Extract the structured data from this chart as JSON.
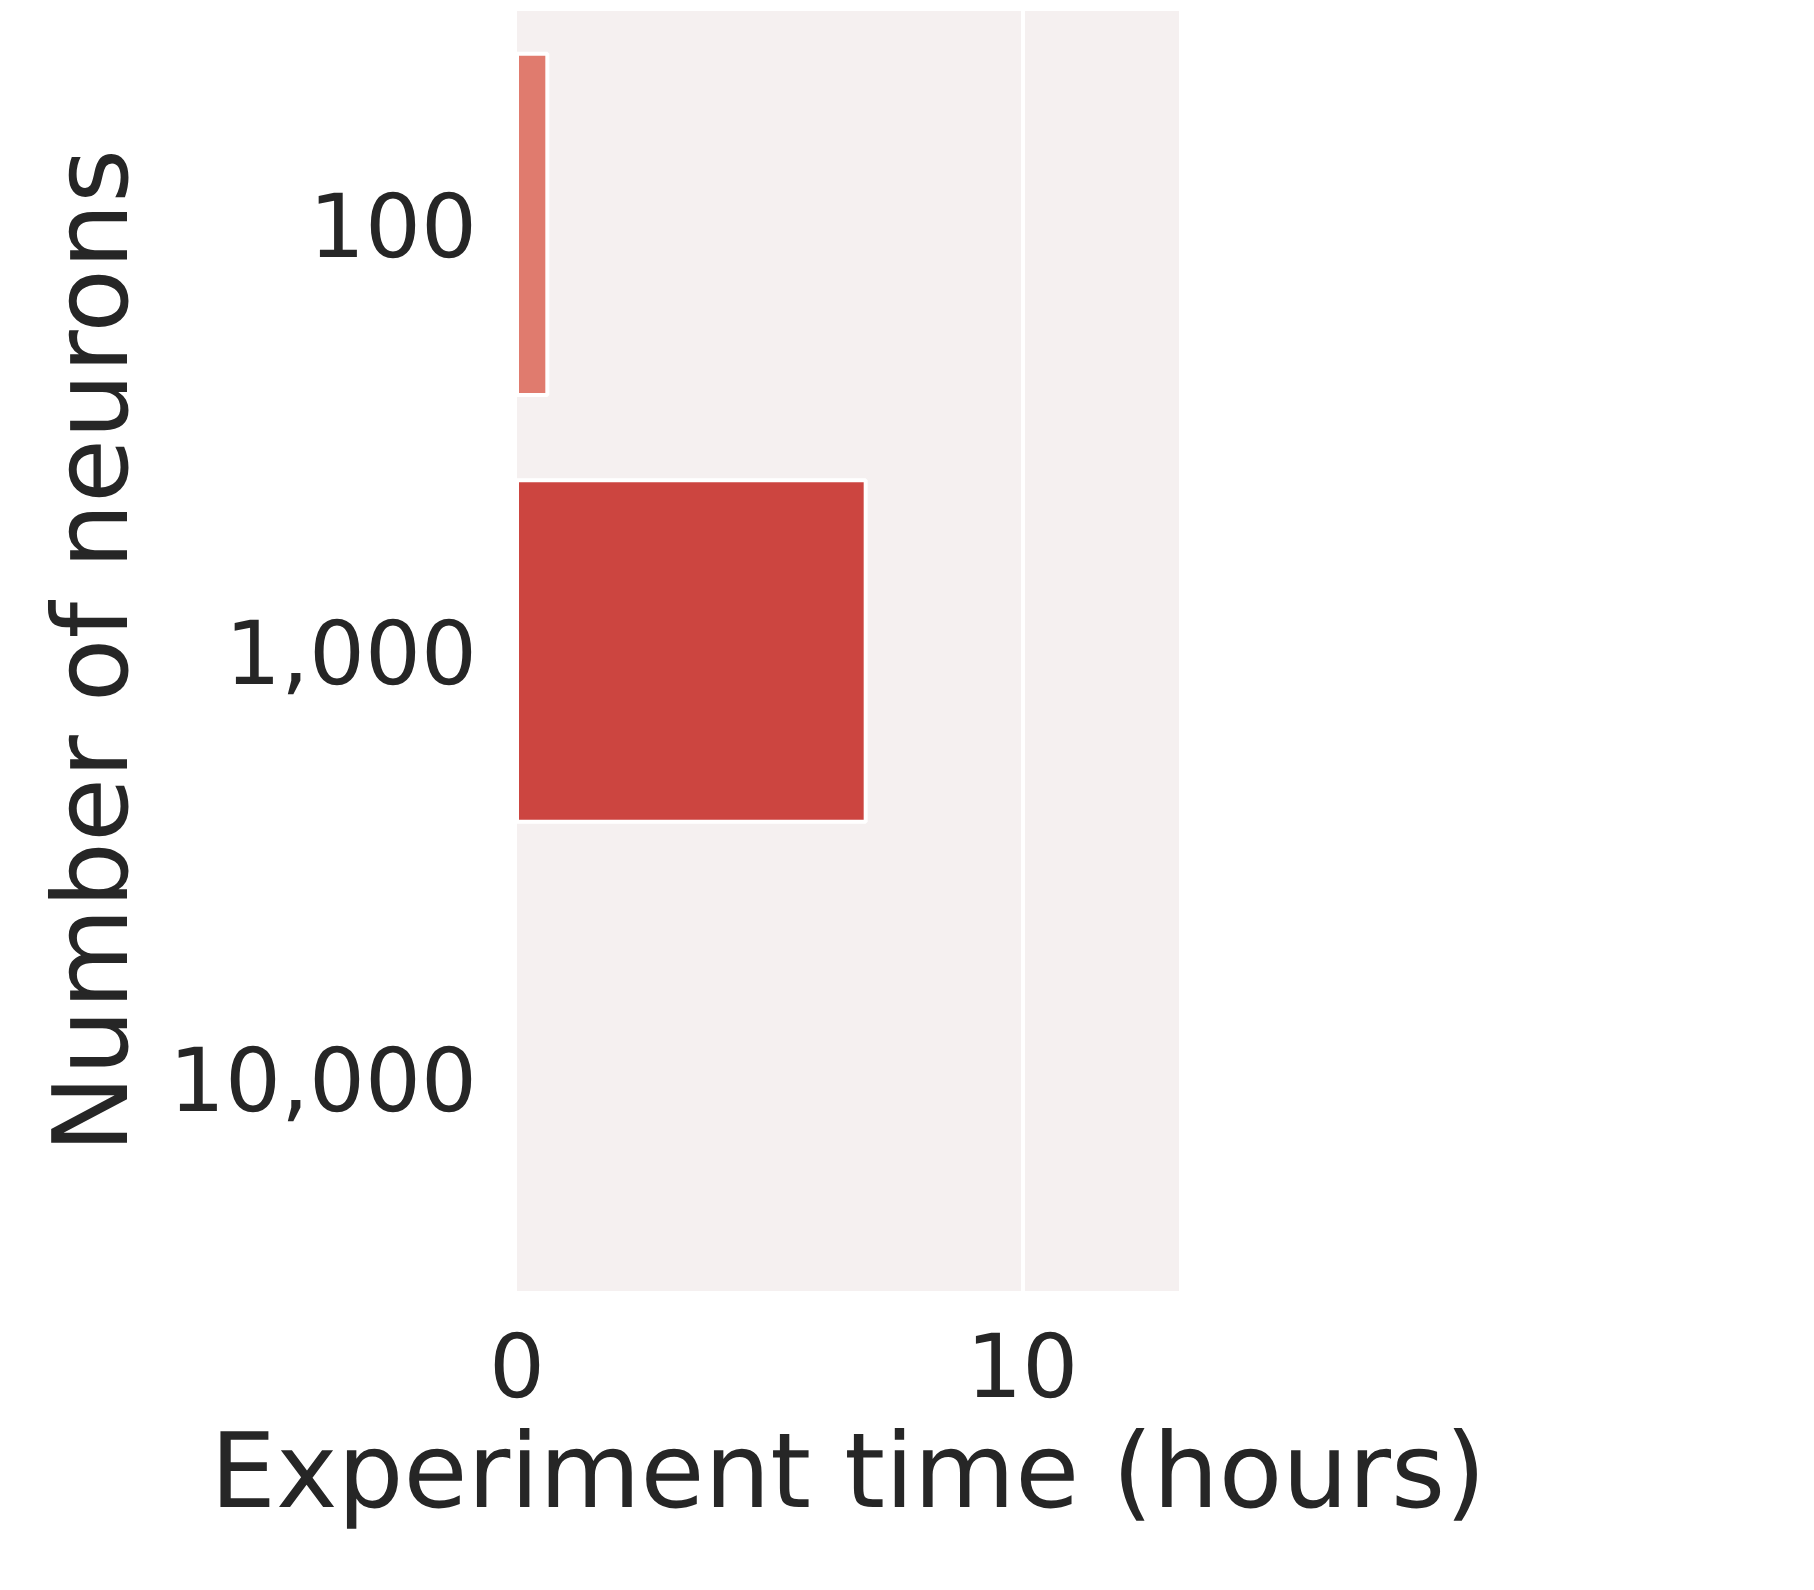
{
  "chart_data": {
    "type": "bar",
    "orientation": "horizontal",
    "xlabel": "Experiment time (hours)",
    "ylabel": "Number of neurons",
    "categories": [
      "100",
      "1,000",
      "10,000"
    ],
    "values": [
      0.6,
      6.9,
      null
    ],
    "colors": [
      "#e07b6e",
      "#cc4540",
      "#b52a2d"
    ],
    "xlim": [
      0,
      13.1
    ],
    "xticks": [
      0,
      10
    ],
    "grid": "x"
  }
}
